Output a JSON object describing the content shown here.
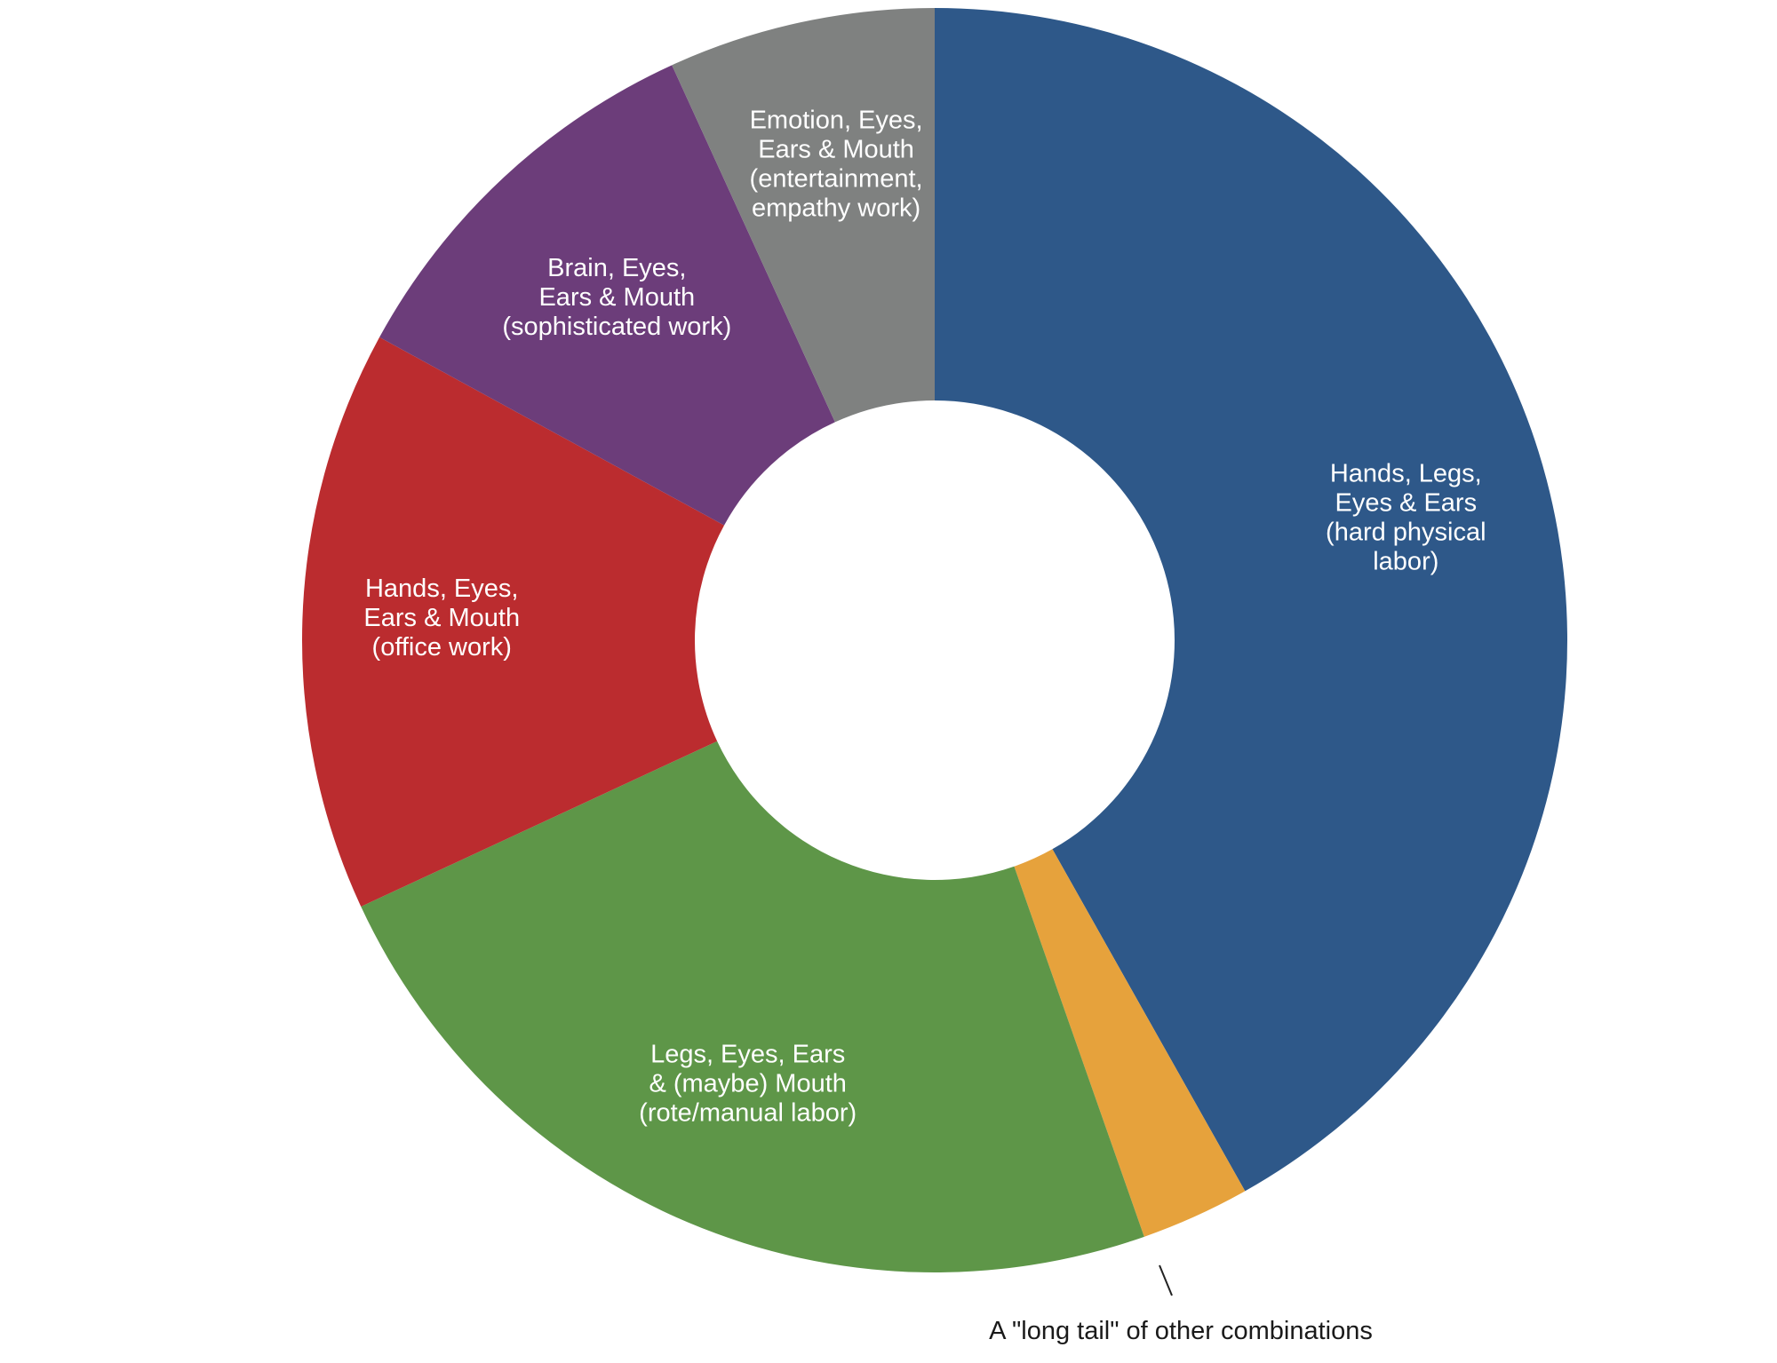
{
  "chart_data": {
    "type": "pie",
    "variant": "donut",
    "title": "",
    "start_angle_deg": 0,
    "direction": "clockwise",
    "slices": [
      {
        "id": "hard-physical-labor",
        "value": 40.5,
        "color": "#2e5889",
        "label_lines": [
          "Hands, Legs,",
          "Eyes & Ears",
          "(hard physical",
          "labor)"
        ]
      },
      {
        "id": "long-tail",
        "value": 2.7,
        "color": "#e6a23c",
        "label_lines": []
      },
      {
        "id": "rote-manual-labor",
        "value": 22.7,
        "color": "#5e9648",
        "label_lines": [
          "Legs, Eyes, Ears",
          "& (maybe) Mouth",
          "(rote/manual labor)"
        ]
      },
      {
        "id": "office-work",
        "value": 14.4,
        "color": "#bb2c2f",
        "label_lines": [
          "Hands, Eyes,",
          "Ears & Mouth",
          "(office work)"
        ]
      },
      {
        "id": "sophisticated-work",
        "value": 9.9,
        "color": "#6c3d7a",
        "label_lines": [
          "Brain, Eyes,",
          "Ears & Mouth",
          "(sophisticated work)"
        ]
      },
      {
        "id": "entertainment-empathy-work",
        "value": 6.6,
        "color": "#7f8180",
        "label_lines": [
          "Emotion, Eyes,",
          "Ears & Mouth",
          "(entertainment,",
          "empathy work)"
        ]
      }
    ],
    "callout": {
      "slice_id": "long-tail",
      "text": "A \"long tail\" of other combinations"
    }
  }
}
